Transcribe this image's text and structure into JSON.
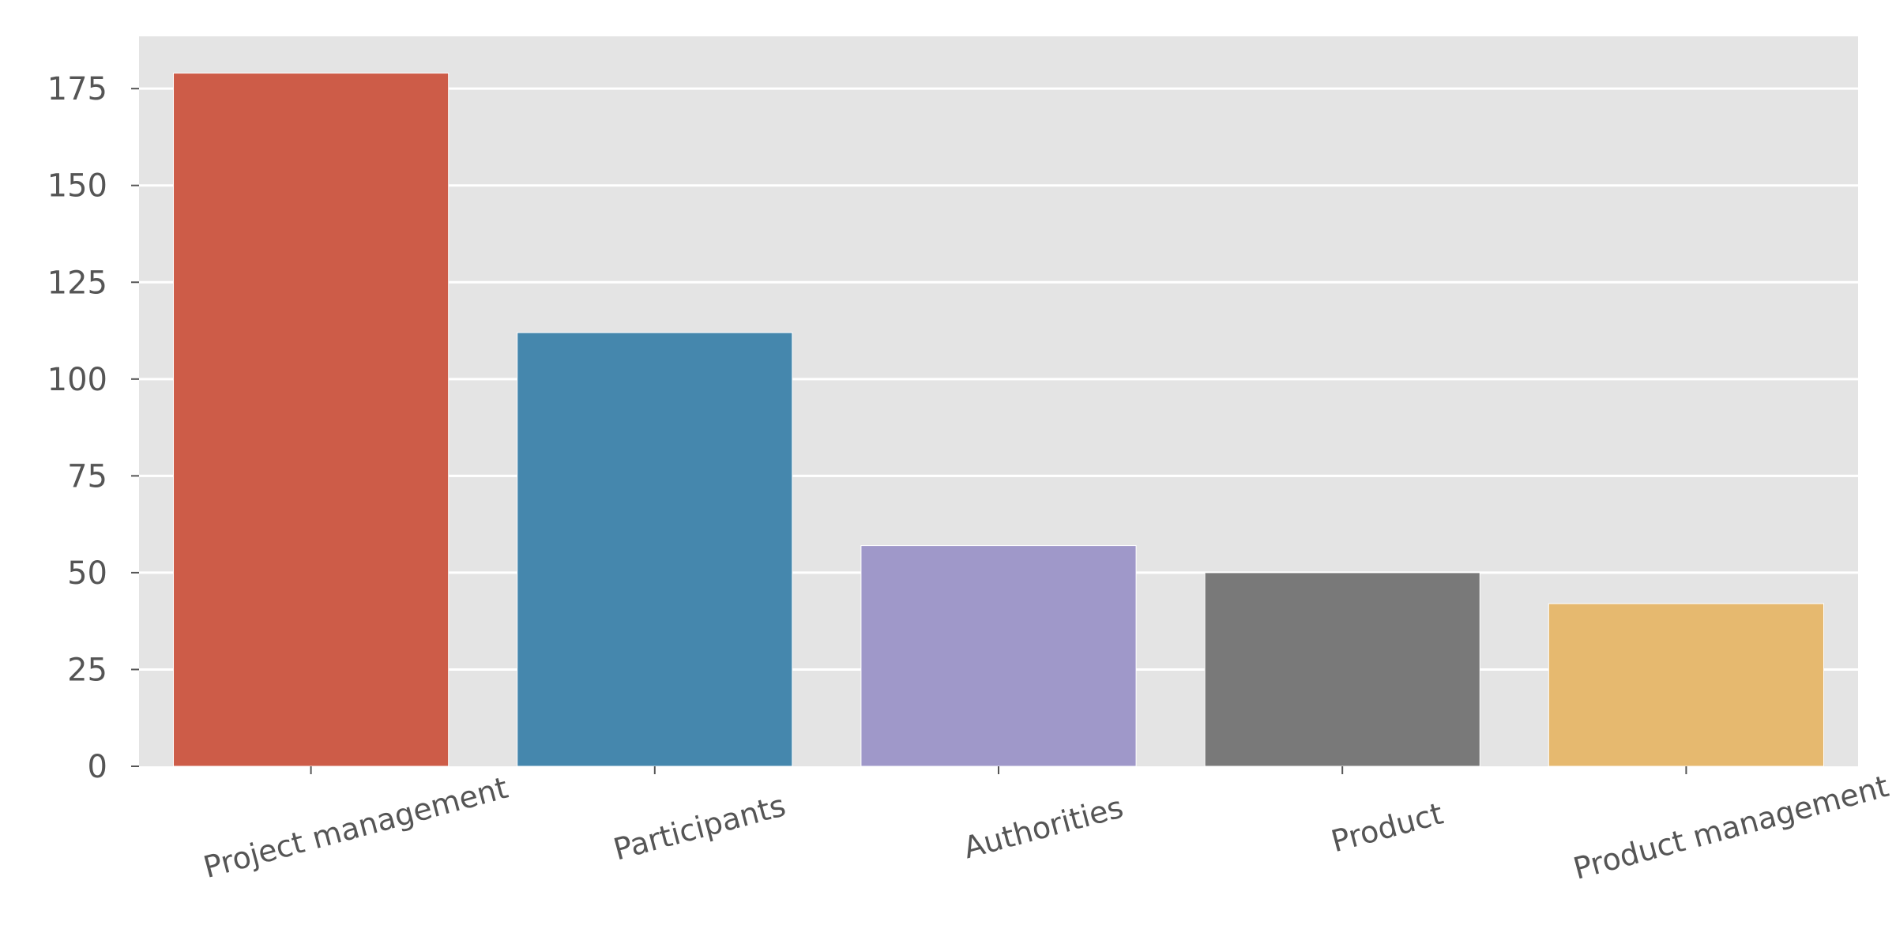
{
  "chart_data": {
    "type": "bar",
    "categories": [
      "Project management",
      "Participants",
      "Authorities",
      "Product",
      "Product management"
    ],
    "values": [
      179,
      112,
      57,
      50,
      42
    ],
    "colors": [
      "#cd5c48",
      "#4587ad",
      "#9f98c9",
      "#797979",
      "#e6b96f"
    ],
    "yticks": [
      0,
      25,
      50,
      75,
      100,
      125,
      150,
      175
    ],
    "ylim": [
      0,
      188.5
    ],
    "title": "",
    "xlabel": "",
    "ylabel": "",
    "grid": true,
    "background": "#e4e4e4",
    "grid_color": "#ffffff",
    "tick_color": "#555555"
  }
}
